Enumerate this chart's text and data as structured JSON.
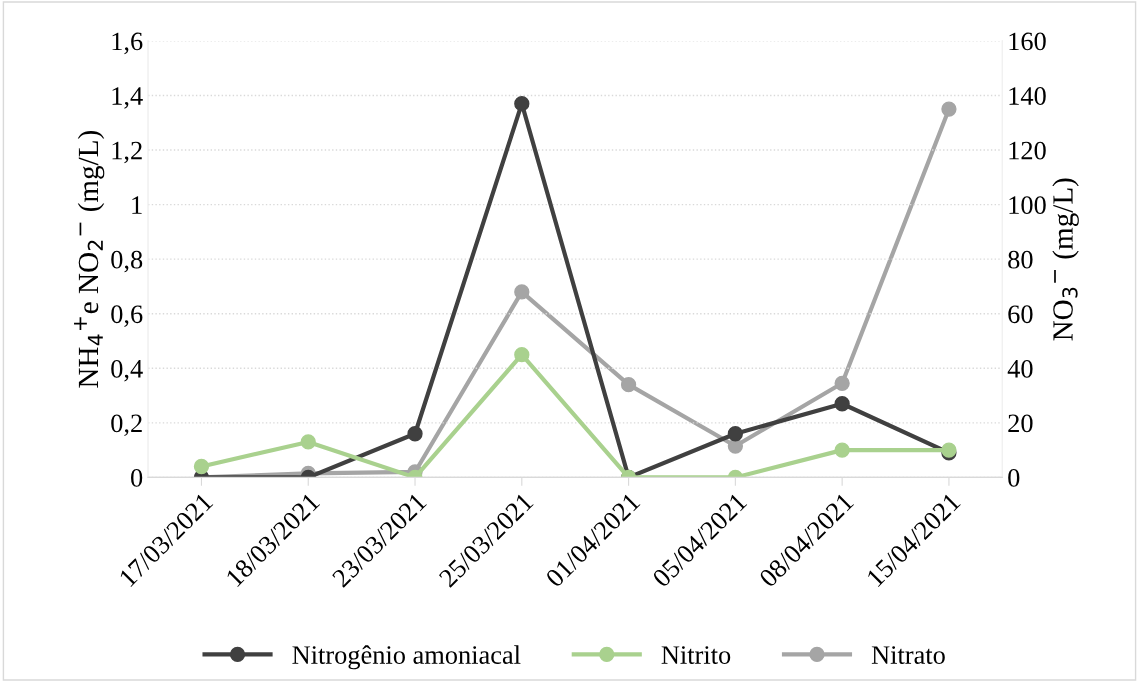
{
  "chart_data": {
    "type": "line",
    "categories": [
      "17/03/2021",
      "18/03/2021",
      "23/03/2021",
      "25/03/2021",
      "01/04/2021",
      "05/04/2021",
      "08/04/2021",
      "15/04/2021"
    ],
    "series": [
      {
        "name": "Nitrogênio amoniacal",
        "color": "#404040",
        "values": [
          0,
          0,
          0.16,
          1.37,
          0,
          0.16,
          0.27,
          0.09
        ]
      },
      {
        "name": "Nitrito",
        "color": "#a9d18e",
        "values": [
          0.04,
          0.13,
          0,
          0.45,
          0,
          0,
          0.1,
          0.1
        ]
      },
      {
        "name": "Nitrato",
        "color": "#a5a5a5",
        "axis": "y2",
        "values": [
          0,
          1.5,
          2,
          68,
          34,
          11.5,
          34.5,
          135
        ]
      }
    ],
    "ylabel": "NH$_{4}$$^{+}$e NO$_{2}$$^{−}$ (mg/L)",
    "y2label": "NO$_{3}$$^{−}$ (mg/L)",
    "ylim": [
      0,
      1.6
    ],
    "yticks": [
      0,
      {
        "value": 0.2,
        "label": "0,2"
      },
      {
        "value": 0.4,
        "label": "0,4"
      },
      {
        "value": 0.6,
        "label": "0,6"
      },
      {
        "value": 0.8,
        "label": "0,8"
      },
      1,
      {
        "value": 1.2,
        "label": "1,2"
      },
      {
        "value": 1.4,
        "label": "1,4"
      },
      {
        "value": 1.6,
        "label": "1,6"
      }
    ],
    "y2lim": [
      0,
      160
    ],
    "y2ticks": [
      0,
      20,
      40,
      60,
      80,
      100,
      120,
      140,
      160
    ],
    "grid": "y",
    "legend": "bottom",
    "marker": "circle",
    "line_style": "solid"
  }
}
